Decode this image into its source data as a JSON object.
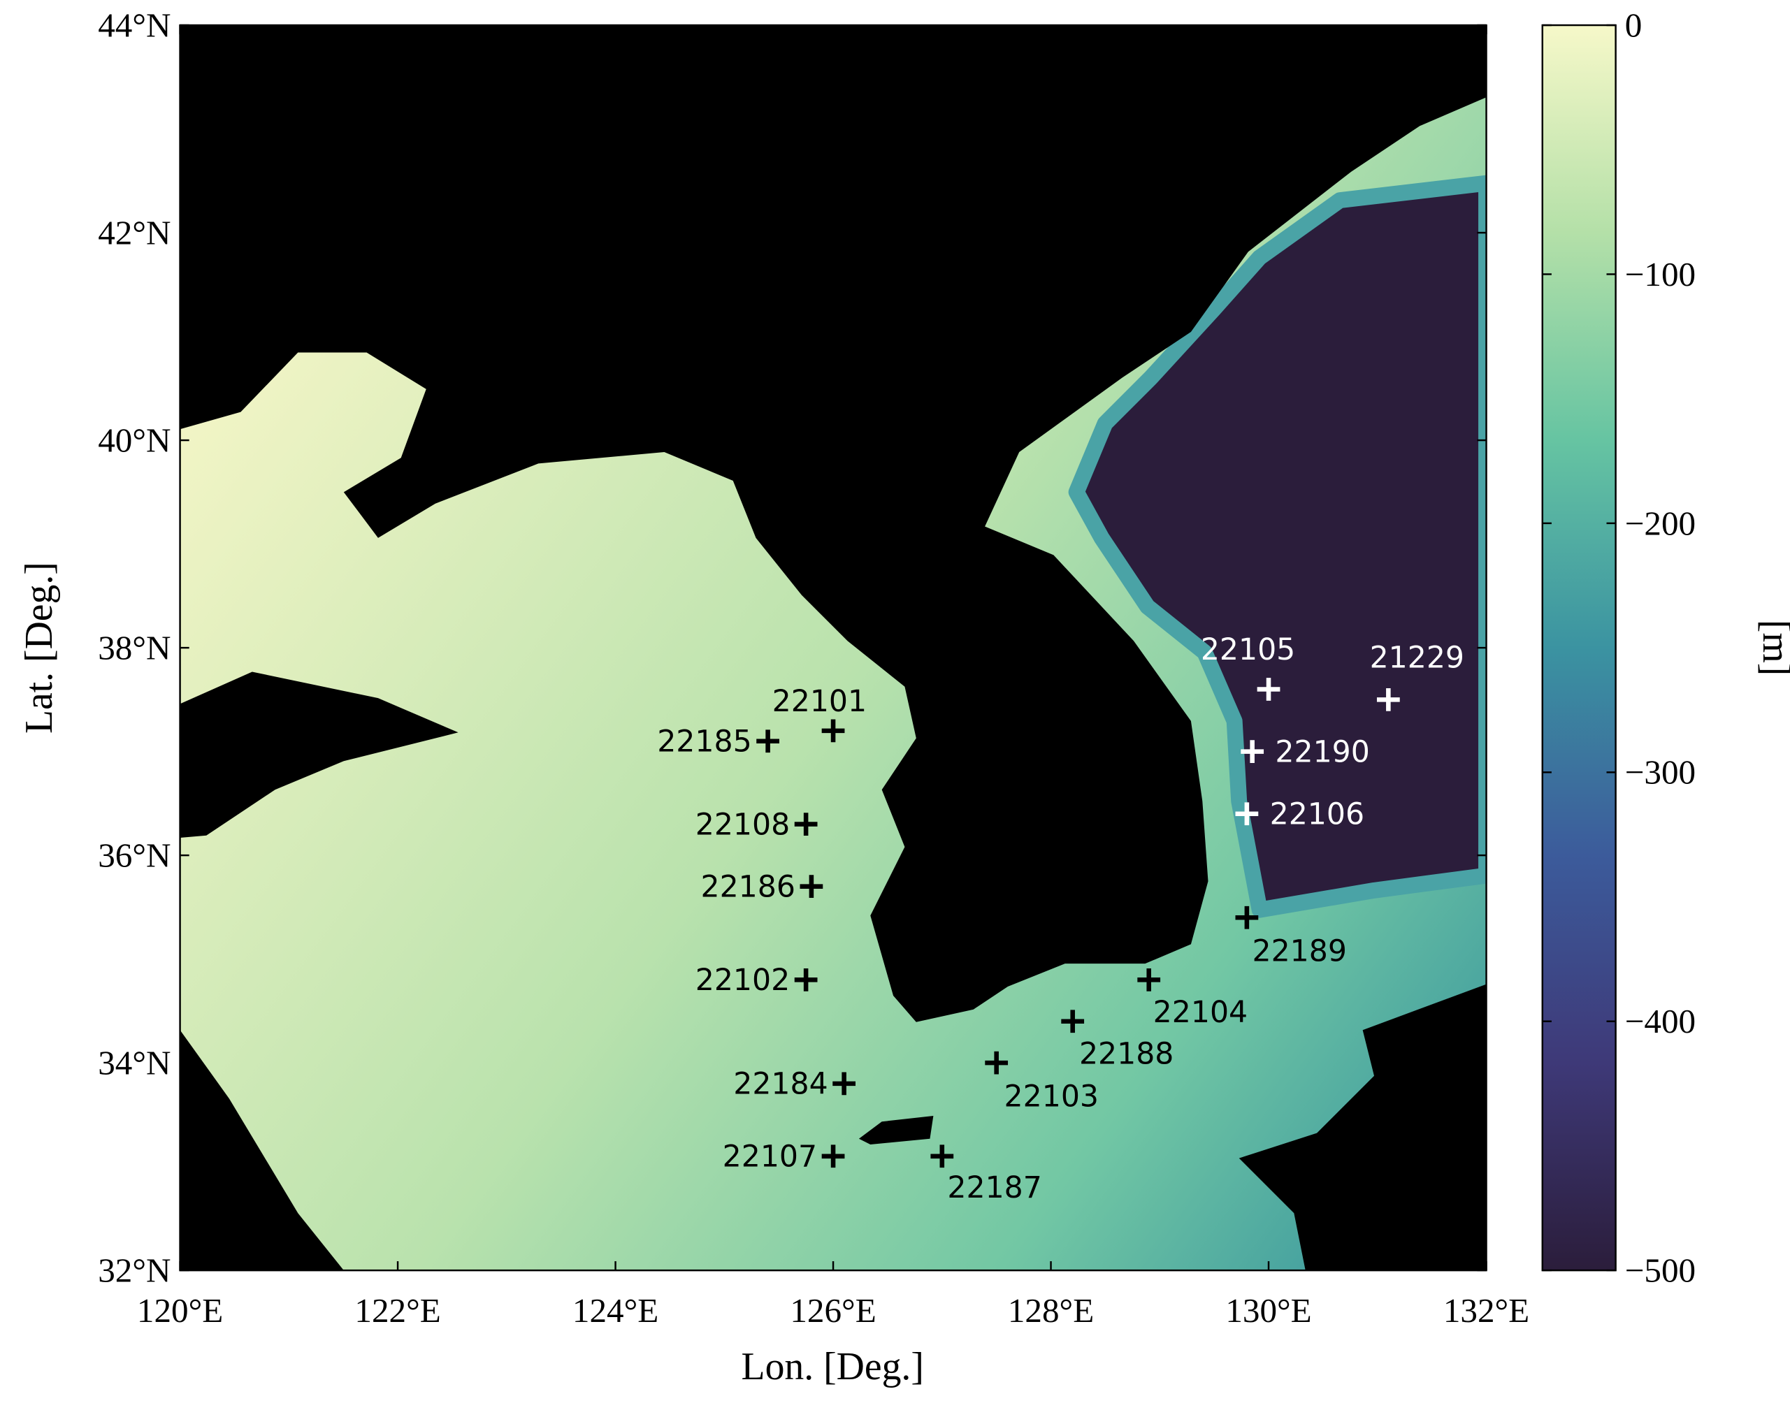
{
  "chart_data": {
    "type": "scatter",
    "xlabel": "Lon. [Deg.]",
    "ylabel": "Lat. [Deg.]",
    "xlim": [
      120,
      132
    ],
    "ylim": [
      32,
      44
    ],
    "xticks": [
      {
        "value": 120,
        "label": "120°E"
      },
      {
        "value": 122,
        "label": "122°E"
      },
      {
        "value": 124,
        "label": "124°E"
      },
      {
        "value": 126,
        "label": "126°E"
      },
      {
        "value": 128,
        "label": "128°E"
      },
      {
        "value": 130,
        "label": "130°E"
      },
      {
        "value": 132,
        "label": "132°E"
      }
    ],
    "yticks": [
      {
        "value": 32,
        "label": "32°N"
      },
      {
        "value": 34,
        "label": "34°N"
      },
      {
        "value": 36,
        "label": "36°N"
      },
      {
        "value": 38,
        "label": "38°N"
      },
      {
        "value": 40,
        "label": "40°N"
      },
      {
        "value": 42,
        "label": "42°N"
      },
      {
        "value": 44,
        "label": "44°N"
      }
    ],
    "labels": [
      "22101",
      "22185",
      "22108",
      "22186",
      "22102",
      "22184",
      "22107",
      "22187",
      "22103",
      "22188",
      "22104",
      "22189",
      "22106",
      "22190",
      "22105",
      "21229"
    ],
    "x": [
      126.0,
      125.4,
      125.75,
      125.8,
      125.75,
      126.1,
      126.0,
      127.0,
      127.5,
      128.2,
      128.9,
      129.8,
      129.8,
      129.85,
      130.0,
      131.1
    ],
    "y": [
      37.2,
      37.1,
      36.3,
      35.7,
      34.8,
      33.8,
      33.1,
      33.1,
      34.0,
      34.4,
      34.8,
      35.4,
      36.4,
      37.0,
      37.6,
      37.5
    ],
    "colors": [
      "#000000",
      "#000000",
      "#000000",
      "#000000",
      "#000000",
      "#000000",
      "#000000",
      "#000000",
      "#000000",
      "#000000",
      "#000000",
      "#000000",
      "#ffffff",
      "#ffffff",
      "#ffffff",
      "#ffffff"
    ],
    "colorbar": {
      "label": "[m]",
      "lim": [
        -500,
        0
      ],
      "ticks": [
        0,
        {
          "value": -100,
          "label": "−100"
        },
        {
          "value": -200,
          "label": "−200"
        },
        {
          "value": -300,
          "label": "−300"
        },
        {
          "value": -400,
          "label": "−400"
        },
        {
          "value": -500,
          "label": "−500"
        }
      ],
      "colormap": [
        "#f6f8c9",
        "#b4e0a8",
        "#66c4a2",
        "#3b93a1",
        "#3c5b9b",
        "#3e3978",
        "#2b1d3b"
      ]
    }
  }
}
